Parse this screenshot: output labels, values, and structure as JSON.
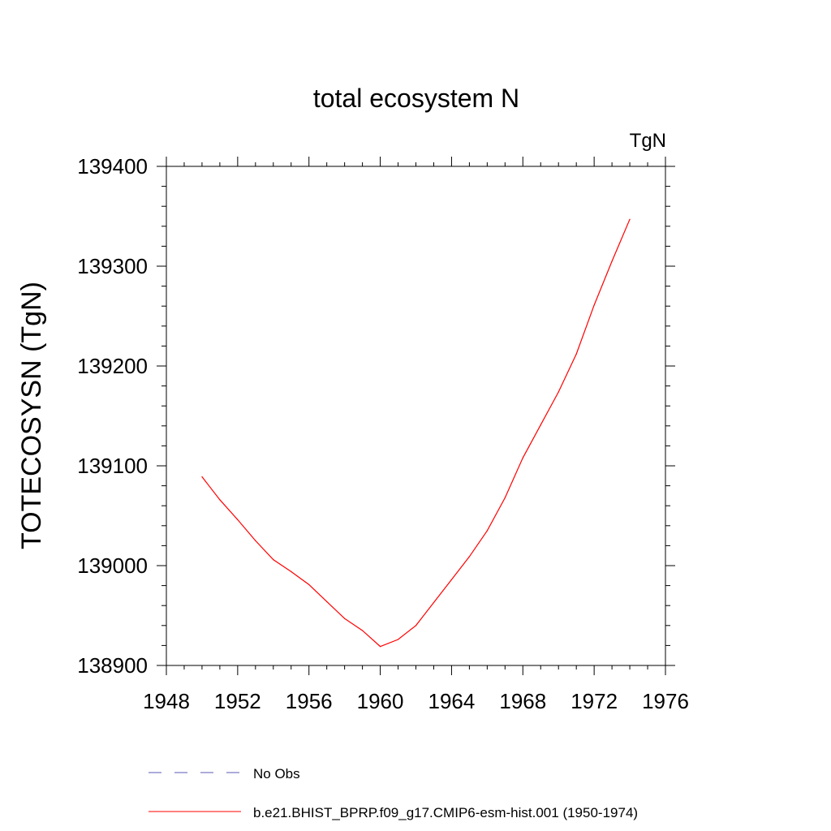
{
  "chart_data": {
    "type": "line",
    "title": "total ecosystem N",
    "units_label": "TgN",
    "ylabel": "TOTECOSYSN  (TgN)",
    "xlabel": "",
    "xlim": [
      1948,
      1976
    ],
    "ylim": [
      138900,
      139400
    ],
    "x_ticks": [
      1948,
      1952,
      1956,
      1960,
      1964,
      1968,
      1972,
      1976
    ],
    "y_ticks": [
      138900,
      139000,
      139100,
      139200,
      139300,
      139400
    ],
    "grid": false,
    "legend_position": "bottom",
    "series": [
      {
        "name": "No Obs",
        "color": "#5a5ab4",
        "dash": "dashed",
        "x": [],
        "y": []
      },
      {
        "name": "b.e21.BHIST_BPRP.f09_g17.CMIP6-esm-hist.001 (1950-1974)",
        "color": "#ff0000",
        "dash": "solid",
        "x": [
          1950,
          1951,
          1952,
          1953,
          1954,
          1955,
          1956,
          1957,
          1958,
          1959,
          1960,
          1961,
          1962,
          1963,
          1964,
          1965,
          1966,
          1967,
          1968,
          1969,
          1970,
          1971,
          1972,
          1973,
          1974
        ],
        "y": [
          139089,
          139066,
          139046,
          139025,
          139006,
          138994,
          138981,
          138964,
          138947,
          138935,
          138919,
          138926,
          138940,
          138963,
          138986,
          139009,
          139035,
          139068,
          139108,
          139141,
          139174,
          139212,
          139261,
          139305,
          139347
        ]
      }
    ]
  }
}
